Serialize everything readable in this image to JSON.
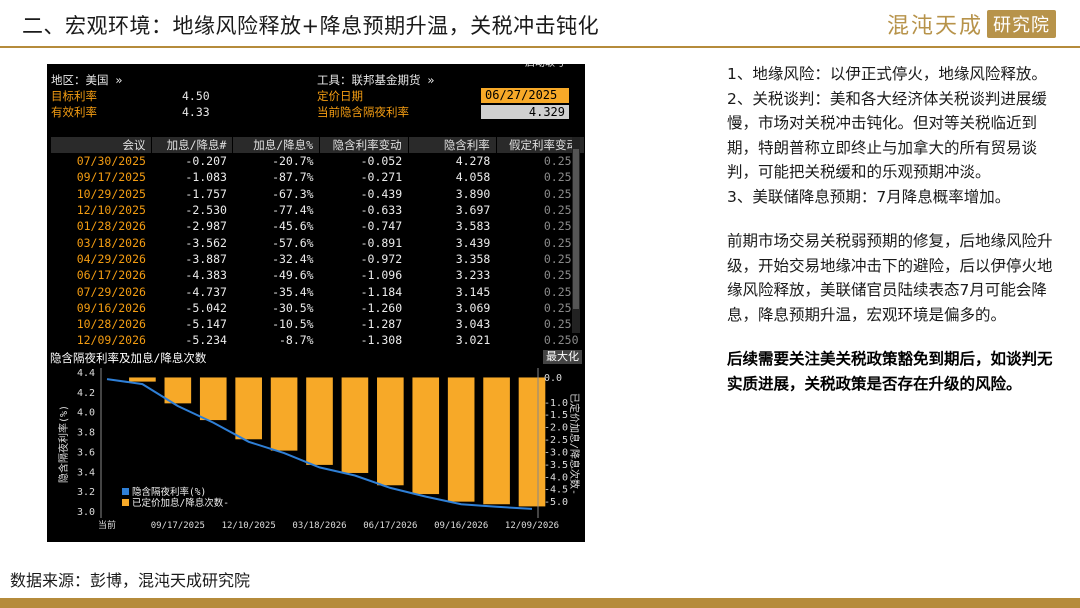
{
  "slide": {
    "title": "二、宏观环境：地缘风险释放+降息预期升温，关税冲击钝化",
    "logo_main": "混沌天成",
    "logo_box": "研究院",
    "source": "数据来源：彭博，混沌天成研究院"
  },
  "terminal": {
    "top_cut_label": "启动取号",
    "region_label": "地区：美国 »",
    "target_rate_label": "目标利率",
    "target_rate_value": "4.50",
    "effective_rate_label": "有效利率",
    "effective_rate_value": "4.33",
    "tool_label": "工具：联邦基金期货 »",
    "pricing_date_label": "定价日期",
    "pricing_date_value": "06/27/2025",
    "implied_overnight_label": "当前隐含隔夜利率",
    "implied_overnight_value": "4.329",
    "table": {
      "headers": [
        "会议",
        "加息/降息#",
        "加息/降息%",
        "隐含利率变动",
        "隐含利率",
        "假定利率变动"
      ],
      "rows": [
        [
          "07/30/2025",
          "-0.207",
          "-20.7%",
          "-0.052",
          "4.278",
          "0.250"
        ],
        [
          "09/17/2025",
          "-1.083",
          "-87.7%",
          "-0.271",
          "4.058",
          "0.250"
        ],
        [
          "10/29/2025",
          "-1.757",
          "-67.3%",
          "-0.439",
          "3.890",
          "0.250"
        ],
        [
          "12/10/2025",
          "-2.530",
          "-77.4%",
          "-0.633",
          "3.697",
          "0.250"
        ],
        [
          "01/28/2026",
          "-2.987",
          "-45.6%",
          "-0.747",
          "3.583",
          "0.250"
        ],
        [
          "03/18/2026",
          "-3.562",
          "-57.6%",
          "-0.891",
          "3.439",
          "0.250"
        ],
        [
          "04/29/2026",
          "-3.887",
          "-32.4%",
          "-0.972",
          "3.358",
          "0.250"
        ],
        [
          "06/17/2026",
          "-4.383",
          "-49.6%",
          "-1.096",
          "3.233",
          "0.250"
        ],
        [
          "07/29/2026",
          "-4.737",
          "-35.4%",
          "-1.184",
          "3.145",
          "0.250"
        ],
        [
          "09/16/2026",
          "-5.042",
          "-30.5%",
          "-1.260",
          "3.069",
          "0.250"
        ],
        [
          "10/28/2026",
          "-5.147",
          "-10.5%",
          "-1.287",
          "3.043",
          "0.250"
        ],
        [
          "12/09/2026",
          "-5.234",
          "-8.7%",
          "-1.308",
          "3.021",
          "0.250"
        ]
      ]
    },
    "chart_title": "隐含隔夜利率及加息/降息次数",
    "max_button": "最大化"
  },
  "chart_data": {
    "type": "bar",
    "categories": [
      "当前",
      "07/30/2025",
      "09/17/2025",
      "10/29/2025",
      "12/10/2025",
      "01/28/2026",
      "03/18/2026",
      "04/29/2026",
      "06/17/2026",
      "07/29/2026",
      "09/16/2026",
      "10/28/2026",
      "12/09/2026"
    ],
    "x_tick_labels": [
      "当前",
      "09/17/2025",
      "12/10/2025",
      "03/18/2026",
      "06/17/2026",
      "09/16/2026",
      "12/09/2026"
    ],
    "series": [
      {
        "name": "隐含隔夜利率(%)",
        "axis": "left",
        "type": "line",
        "color": "#2f7fd6",
        "values": [
          4.329,
          4.278,
          4.058,
          3.89,
          3.697,
          3.583,
          3.439,
          3.358,
          3.233,
          3.145,
          3.069,
          3.043,
          3.021
        ]
      },
      {
        "name": "已定价加息/降息次数-",
        "axis": "right",
        "type": "bar",
        "color": "#f7a928",
        "values": [
          null,
          -0.207,
          -1.083,
          -1.757,
          -2.53,
          -2.987,
          -3.562,
          -3.887,
          -4.383,
          -4.737,
          -5.042,
          -5.147,
          -5.234
        ]
      }
    ],
    "ylabel": "隐含隔夜利率(%)",
    "y2label": "已定价加息/降息次数-",
    "ylim": [
      2.95,
      4.4
    ],
    "y_ticks": [
      3.0,
      3.2,
      3.4,
      3.6,
      3.8,
      4.0,
      4.2,
      4.4
    ],
    "y2lim": [
      -5.6,
      0.2
    ],
    "y2_ticks": [
      0.0,
      -1.0,
      -1.5,
      -2.0,
      -2.5,
      -3.0,
      -3.5,
      -4.0,
      -4.5,
      -5.0
    ],
    "y2_tick_labels": [
      "0.0",
      "-1.0",
      "-1.5",
      "-2.0",
      "-2.5",
      "-3.0",
      "-3.5",
      "-4.0",
      "-4.5",
      "-5.0"
    ],
    "legend": "bottom-left",
    "grid": false,
    "colors": {
      "background": "#000000",
      "axis_text": "#dddddd",
      "bar": "#f7a928",
      "line": "#2f7fd6"
    }
  },
  "commentary": {
    "items": [
      "1、地缘风险：以伊正式停火，地缘风险释放。",
      "2、关税谈判：美和各大经济体关税谈判进展缓慢，市场对关税冲击钝化。但对等关税临近到期，特朗普称立即终止与加拿大的所有贸易谈判，可能把关税缓和的乐观预期冲淡。",
      "3、美联储降息预期：7月降息概率增加。"
    ],
    "summary": "前期市场交易关税弱预期的修复，后地缘风险升级，开始交易地缘冲击下的避险，后以伊停火地缘风险释放，美联储官员陆续表态7月可能会降息，降息预期升温，宏观环境是偏多的。",
    "emphasis": "后续需要关注美关税政策豁免到期后，如谈判无实质进展，关税政策是否存在升级的风险。"
  }
}
